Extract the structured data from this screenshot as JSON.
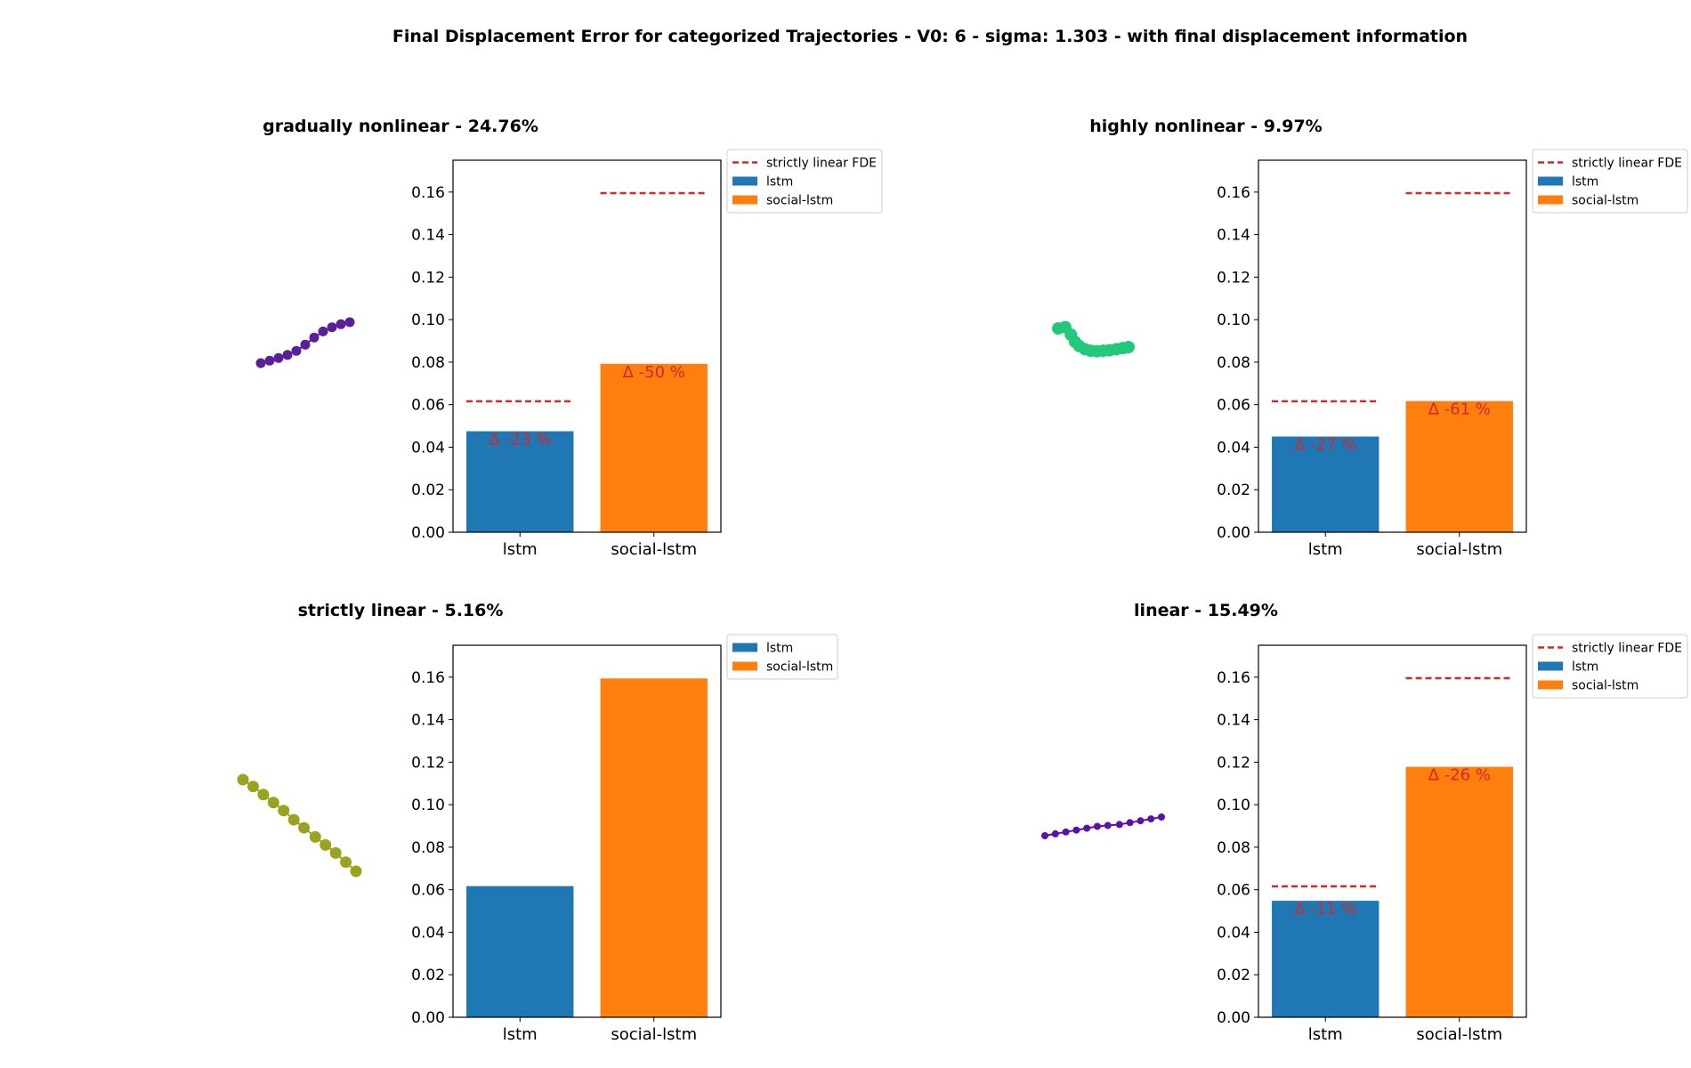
{
  "figure": {
    "title": "Final Displacement Error for categorized Trajectories - V0: 6 - sigma: 1.303 - with final displacement information"
  },
  "chart_data": [
    {
      "type": "bar",
      "title": "gradually nonlinear - 24.76%",
      "categories": [
        "lstm",
        "social-lstm"
      ],
      "values": [
        0.0475,
        0.0792
      ],
      "colors": [
        "#1f77b4",
        "#ff7f0e"
      ],
      "ylim": [
        0,
        0.175
      ],
      "yticks": [
        "0.00",
        "0.02",
        "0.04",
        "0.06",
        "0.08",
        "0.10",
        "0.12",
        "0.14",
        "0.16"
      ],
      "reference_lines": [
        0.0616,
        0.1595
      ],
      "reference_color": "#d62728",
      "annotations": [
        "Δ -23 %",
        "Δ -50 %"
      ],
      "legend": [
        "strictly linear FDE",
        "lstm",
        "social-lstm"
      ],
      "legend_position": "outside-top-right",
      "trajectory": {
        "color": "#5b1f99",
        "points": [
          [
            0,
            0
          ],
          [
            0.1,
            0.012
          ],
          [
            0.2,
            0.025
          ],
          [
            0.3,
            0.04
          ],
          [
            0.4,
            0.06
          ],
          [
            0.5,
            0.09
          ],
          [
            0.6,
            0.125
          ],
          [
            0.7,
            0.155
          ],
          [
            0.8,
            0.175
          ],
          [
            0.9,
            0.19
          ],
          [
            1.0,
            0.2
          ]
        ],
        "radius": 5.5
      }
    },
    {
      "type": "bar",
      "title": "highly nonlinear - 9.97%",
      "categories": [
        "lstm",
        "social-lstm"
      ],
      "values": [
        0.045,
        0.0617
      ],
      "colors": [
        "#1f77b4",
        "#ff7f0e"
      ],
      "ylim": [
        0,
        0.175
      ],
      "yticks": [
        "0.00",
        "0.02",
        "0.04",
        "0.06",
        "0.08",
        "0.10",
        "0.12",
        "0.14",
        "0.16"
      ],
      "reference_lines": [
        0.0616,
        0.1595
      ],
      "reference_color": "#d62728",
      "annotations": [
        "Δ -27 %",
        "Δ -61 %"
      ],
      "legend": [
        "strictly linear FDE",
        "lstm",
        "social-lstm"
      ],
      "legend_position": "outside-top-right",
      "trajectory": {
        "color": "#22c97a",
        "points": [
          [
            0,
            0
          ],
          [
            0.1,
            0.012
          ],
          [
            0.18,
            -0.06
          ],
          [
            0.24,
            -0.13
          ],
          [
            0.3,
            -0.17
          ],
          [
            0.38,
            -0.2
          ],
          [
            0.46,
            -0.215
          ],
          [
            0.55,
            -0.22
          ],
          [
            0.64,
            -0.215
          ],
          [
            0.73,
            -0.21
          ],
          [
            0.83,
            -0.2
          ],
          [
            0.92,
            -0.19
          ],
          [
            1.0,
            -0.18
          ]
        ],
        "radius": 7
      }
    },
    {
      "type": "bar",
      "title": "strictly linear - 5.16%",
      "categories": [
        "lstm",
        "social-lstm"
      ],
      "values": [
        0.0617,
        0.1594
      ],
      "colors": [
        "#1f77b4",
        "#ff7f0e"
      ],
      "ylim": [
        0,
        0.175
      ],
      "yticks": [
        "0.00",
        "0.02",
        "0.04",
        "0.06",
        "0.08",
        "0.10",
        "0.12",
        "0.14",
        "0.16"
      ],
      "reference_lines": [],
      "reference_color": "#d62728",
      "annotations": [],
      "legend": [
        "lstm",
        "social-lstm"
      ],
      "legend_position": "outside-top-right",
      "trajectory": {
        "color": "#9aa31f",
        "points": [
          [
            0,
            0
          ],
          [
            0.09,
            -0.06
          ],
          [
            0.18,
            -0.13
          ],
          [
            0.27,
            -0.2
          ],
          [
            0.36,
            -0.27
          ],
          [
            0.45,
            -0.35
          ],
          [
            0.54,
            -0.42
          ],
          [
            0.64,
            -0.5
          ],
          [
            0.73,
            -0.57
          ],
          [
            0.82,
            -0.64
          ],
          [
            0.91,
            -0.72
          ],
          [
            1.0,
            -0.8
          ]
        ],
        "radius": 6.5
      }
    },
    {
      "type": "bar",
      "title": "linear - 15.49%",
      "categories": [
        "lstm",
        "social-lstm"
      ],
      "values": [
        0.0548,
        0.1178
      ],
      "colors": [
        "#1f77b4",
        "#ff7f0e"
      ],
      "ylim": [
        0,
        0.175
      ],
      "yticks": [
        "0.00",
        "0.02",
        "0.04",
        "0.06",
        "0.08",
        "0.10",
        "0.12",
        "0.14",
        "0.16"
      ],
      "reference_lines": [
        0.0616,
        0.1595
      ],
      "reference_color": "#d62728",
      "annotations": [
        "Δ -11 %",
        "Δ -26 %"
      ],
      "legend": [
        "strictly linear FDE",
        "lstm",
        "social-lstm"
      ],
      "legend_position": "outside-top-right",
      "trajectory": {
        "color": "#5a11a8",
        "points": [
          [
            0,
            0
          ],
          [
            0.09,
            0.01
          ],
          [
            0.18,
            0.02
          ],
          [
            0.27,
            0.03
          ],
          [
            0.36,
            0.04
          ],
          [
            0.45,
            0.05
          ],
          [
            0.54,
            0.055
          ],
          [
            0.64,
            0.06
          ],
          [
            0.73,
            0.07
          ],
          [
            0.82,
            0.08
          ],
          [
            0.91,
            0.09
          ],
          [
            1.0,
            0.1
          ]
        ],
        "radius": 4
      }
    }
  ]
}
